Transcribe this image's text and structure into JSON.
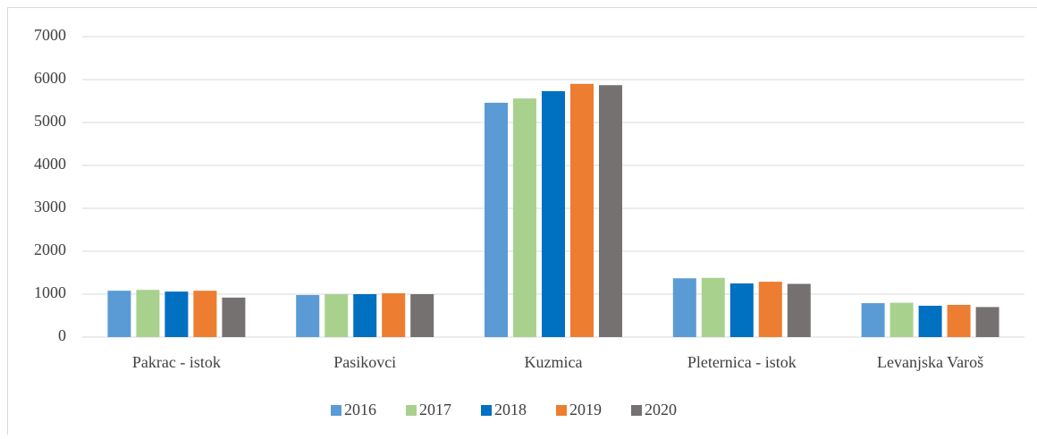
{
  "chart_data": {
    "type": "bar",
    "categories": [
      "Pakrac - istok",
      "Pasikovci",
      "Kuzmica",
      "Pleternica - istok",
      "Levanjska Varoš"
    ],
    "series": [
      {
        "name": "2016",
        "color": "#5b9bd5",
        "values": [
          1080,
          980,
          5460,
          1370,
          790
        ]
      },
      {
        "name": "2017",
        "color": "#a9d18e",
        "values": [
          1100,
          1000,
          5560,
          1380,
          800
        ]
      },
      {
        "name": "2018",
        "color": "#0070c0",
        "values": [
          1060,
          1000,
          5730,
          1250,
          730
        ]
      },
      {
        "name": "2019",
        "color": "#ed7d31",
        "values": [
          1080,
          1020,
          5900,
          1290,
          750
        ]
      },
      {
        "name": "2020",
        "color": "#767171",
        "values": [
          920,
          1000,
          5870,
          1240,
          700
        ]
      }
    ],
    "ylim": [
      0,
      7000
    ],
    "yticks": [
      0,
      1000,
      2000,
      3000,
      4000,
      5000,
      6000,
      7000
    ],
    "grid": true,
    "legend": "bottom"
  }
}
